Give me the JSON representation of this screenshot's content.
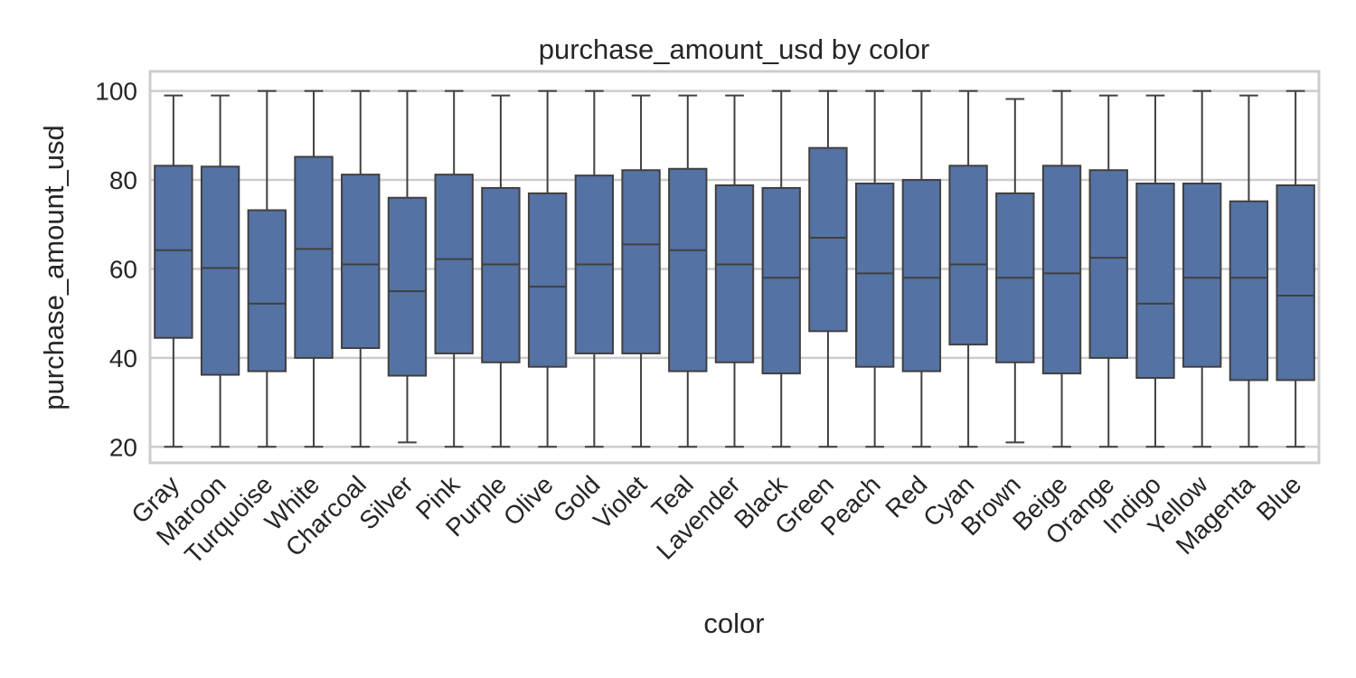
{
  "chart_data": {
    "type": "box",
    "title": "purchase_amount_usd by color",
    "xlabel": "color",
    "ylabel": "purchase_amount_usd",
    "ylim": [
      16.4,
      104.4
    ],
    "yticks": [
      20,
      40,
      60,
      80,
      100
    ],
    "grid": true,
    "box_color": "#5572a4",
    "categories": [
      "Gray",
      "Maroon",
      "Turquoise",
      "White",
      "Charcoal",
      "Silver",
      "Pink",
      "Purple",
      "Olive",
      "Gold",
      "Violet",
      "Teal",
      "Lavender",
      "Black",
      "Green",
      "Peach",
      "Red",
      "Cyan",
      "Brown",
      "Beige",
      "Orange",
      "Indigo",
      "Yellow",
      "Magenta",
      "Blue"
    ],
    "boxes": [
      {
        "whislo": 20,
        "q1": 44.5,
        "med": 64.2,
        "q3": 83.2,
        "whishi": 99
      },
      {
        "whislo": 20,
        "q1": 36.2,
        "med": 60.2,
        "q3": 83,
        "whishi": 99
      },
      {
        "whislo": 20,
        "q1": 37,
        "med": 52.2,
        "q3": 73.2,
        "whishi": 100
      },
      {
        "whislo": 20,
        "q1": 40,
        "med": 64.5,
        "q3": 85.2,
        "whishi": 100
      },
      {
        "whislo": 20,
        "q1": 42.2,
        "med": 61,
        "q3": 81.2,
        "whishi": 100
      },
      {
        "whislo": 21,
        "q1": 36,
        "med": 55,
        "q3": 76,
        "whishi": 100
      },
      {
        "whislo": 20,
        "q1": 41,
        "med": 62.2,
        "q3": 81.2,
        "whishi": 100
      },
      {
        "whislo": 20,
        "q1": 39,
        "med": 61,
        "q3": 78.2,
        "whishi": 99
      },
      {
        "whislo": 20,
        "q1": 38,
        "med": 56,
        "q3": 77,
        "whishi": 100
      },
      {
        "whislo": 20,
        "q1": 41,
        "med": 61,
        "q3": 81,
        "whishi": 100
      },
      {
        "whislo": 20,
        "q1": 41,
        "med": 65.5,
        "q3": 82.2,
        "whishi": 99
      },
      {
        "whislo": 20,
        "q1": 37,
        "med": 64.2,
        "q3": 82.5,
        "whishi": 99
      },
      {
        "whislo": 20,
        "q1": 39,
        "med": 61,
        "q3": 78.8,
        "whishi": 99
      },
      {
        "whislo": 20,
        "q1": 36.5,
        "med": 58,
        "q3": 78.2,
        "whishi": 100
      },
      {
        "whislo": 20,
        "q1": 46,
        "med": 67,
        "q3": 87.2,
        "whishi": 100
      },
      {
        "whislo": 20,
        "q1": 38,
        "med": 59,
        "q3": 79.2,
        "whishi": 100
      },
      {
        "whislo": 20,
        "q1": 37,
        "med": 58,
        "q3": 80,
        "whishi": 100
      },
      {
        "whislo": 20,
        "q1": 43,
        "med": 61,
        "q3": 83.2,
        "whishi": 100
      },
      {
        "whislo": 21,
        "q1": 39,
        "med": 58,
        "q3": 77,
        "whishi": 98.2
      },
      {
        "whislo": 20,
        "q1": 36.5,
        "med": 59,
        "q3": 83.2,
        "whishi": 100
      },
      {
        "whislo": 20,
        "q1": 40,
        "med": 62.5,
        "q3": 82.2,
        "whishi": 99
      },
      {
        "whislo": 20,
        "q1": 35.5,
        "med": 52.2,
        "q3": 79.2,
        "whishi": 99
      },
      {
        "whislo": 20,
        "q1": 38,
        "med": 58,
        "q3": 79.2,
        "whishi": 100
      },
      {
        "whislo": 20,
        "q1": 35,
        "med": 58,
        "q3": 75.2,
        "whishi": 99
      },
      {
        "whislo": 20,
        "q1": 35,
        "med": 54,
        "q3": 78.8,
        "whishi": 100
      }
    ]
  }
}
